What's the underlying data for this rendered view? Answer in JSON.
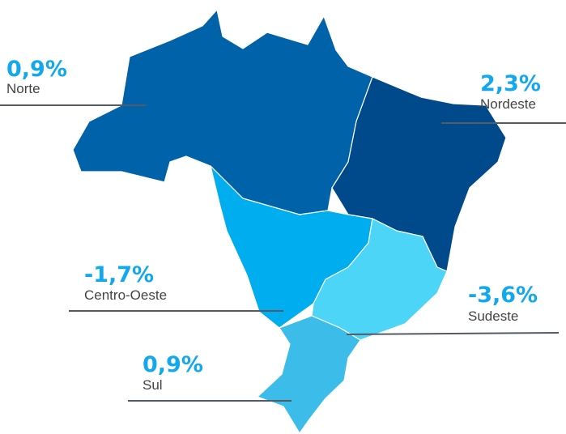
{
  "regions": [
    {
      "value": "0,9%",
      "name": "Norte"
    },
    {
      "value": "2,3%",
      "name": "Nordeste"
    },
    {
      "value": "-1,7%",
      "name": "Centro-Oeste"
    },
    {
      "value": "-3,6%",
      "name": "Sudeste"
    },
    {
      "value": "0,9%",
      "name": "Sul"
    }
  ]
}
